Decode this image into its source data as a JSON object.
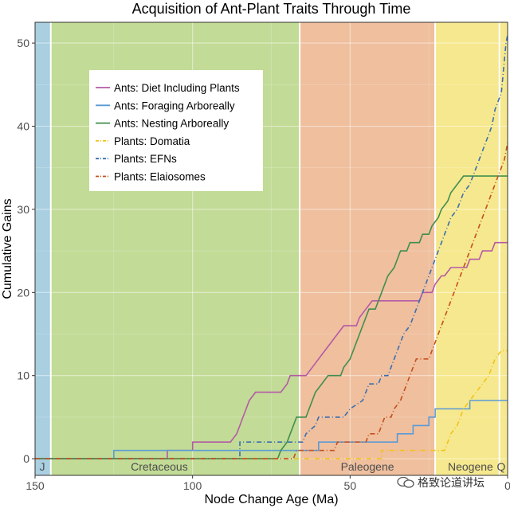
{
  "chart_data": {
    "type": "line",
    "title": "Acquisition of Ant-Plant Traits Through Time",
    "xlabel": "Node Change Age (Ma)",
    "ylabel": "Cumulative Gains",
    "xlim": [
      150,
      0
    ],
    "ylim": [
      -2,
      52.5
    ],
    "x_ticks": [
      150,
      100,
      50,
      0
    ],
    "y_ticks": [
      0,
      10,
      20,
      30,
      40,
      50
    ],
    "grid": true,
    "legend_position": "top-left",
    "periods": [
      {
        "label": "J",
        "start": 150,
        "end": 145,
        "color": "#a9cfe0"
      },
      {
        "label": "Cretaceous",
        "start": 145,
        "end": 66,
        "color": "#c2db96"
      },
      {
        "label": "Paleogene",
        "start": 66,
        "end": 23,
        "color": "#efbf9e"
      },
      {
        "label": "Neogene",
        "start": 23,
        "end": 2.6,
        "color": "#f6e88e"
      },
      {
        "label": "Q",
        "start": 2.6,
        "end": 0,
        "color": "#f6e88e"
      }
    ],
    "series": [
      {
        "name": "Ants: Diet Including Plants",
        "color": "#b45aa6",
        "dash": "solid",
        "points": [
          [
            150,
            0
          ],
          [
            108,
            0
          ],
          [
            108,
            1
          ],
          [
            100,
            1
          ],
          [
            100,
            2
          ],
          [
            88,
            2
          ],
          [
            86,
            3
          ],
          [
            85,
            4
          ],
          [
            84,
            5
          ],
          [
            83,
            6
          ],
          [
            82,
            7
          ],
          [
            80,
            8
          ],
          [
            72,
            8
          ],
          [
            70,
            9
          ],
          [
            69,
            10
          ],
          [
            64,
            10
          ],
          [
            62,
            11
          ],
          [
            60,
            12
          ],
          [
            58,
            13
          ],
          [
            56,
            14
          ],
          [
            54,
            15
          ],
          [
            52,
            16
          ],
          [
            48,
            16
          ],
          [
            47,
            17
          ],
          [
            45,
            18
          ],
          [
            43,
            19
          ],
          [
            28,
            19
          ],
          [
            27,
            20
          ],
          [
            24,
            20
          ],
          [
            23,
            21
          ],
          [
            21,
            22
          ],
          [
            20,
            22
          ],
          [
            18,
            23
          ],
          [
            13,
            23
          ],
          [
            12,
            24
          ],
          [
            9,
            24
          ],
          [
            8,
            25
          ],
          [
            5,
            25
          ],
          [
            4,
            26
          ],
          [
            0,
            26
          ]
        ]
      },
      {
        "name": "Ants: Foraging Arboreally",
        "color": "#5b9bd5",
        "dash": "solid",
        "points": [
          [
            150,
            0
          ],
          [
            125,
            0
          ],
          [
            125,
            1
          ],
          [
            60,
            1
          ],
          [
            60,
            2
          ],
          [
            35,
            2
          ],
          [
            35,
            3
          ],
          [
            30,
            3
          ],
          [
            30,
            4
          ],
          [
            25,
            4
          ],
          [
            25,
            5
          ],
          [
            23,
            5
          ],
          [
            23,
            6
          ],
          [
            12,
            6
          ],
          [
            12,
            7
          ],
          [
            0,
            7
          ]
        ]
      },
      {
        "name": "Ants: Nesting Arboreally",
        "color": "#3f8f4f",
        "dash": "solid",
        "points": [
          [
            150,
            0
          ],
          [
            73,
            0
          ],
          [
            72,
            1
          ],
          [
            70,
            2
          ],
          [
            69,
            3
          ],
          [
            68,
            4
          ],
          [
            67,
            5
          ],
          [
            64,
            5
          ],
          [
            63,
            6
          ],
          [
            62,
            7
          ],
          [
            61,
            8
          ],
          [
            59,
            9
          ],
          [
            57,
            10
          ],
          [
            53,
            10
          ],
          [
            52,
            11
          ],
          [
            50,
            12
          ],
          [
            49,
            13
          ],
          [
            48,
            14
          ],
          [
            47,
            15
          ],
          [
            46,
            16
          ],
          [
            45,
            17
          ],
          [
            44,
            18
          ],
          [
            42,
            18
          ],
          [
            41,
            19
          ],
          [
            40,
            20
          ],
          [
            39,
            21
          ],
          [
            38,
            22
          ],
          [
            36,
            23
          ],
          [
            35,
            24
          ],
          [
            34,
            25
          ],
          [
            32,
            25
          ],
          [
            31,
            26
          ],
          [
            28,
            26
          ],
          [
            27,
            27
          ],
          [
            25,
            27
          ],
          [
            24,
            28
          ],
          [
            22,
            29
          ],
          [
            21,
            30
          ],
          [
            19,
            31
          ],
          [
            18,
            32
          ],
          [
            16,
            33
          ],
          [
            14,
            34
          ],
          [
            0,
            34
          ]
        ]
      },
      {
        "name": "Plants: Domatia",
        "color": "#f2c318",
        "dash": "6,3,1,3",
        "points": [
          [
            150,
            0
          ],
          [
            40,
            0
          ],
          [
            40,
            1
          ],
          [
            20,
            1
          ],
          [
            19,
            2
          ],
          [
            18,
            3
          ],
          [
            16,
            4
          ],
          [
            15,
            5
          ],
          [
            14,
            6
          ],
          [
            12,
            7
          ],
          [
            10,
            8
          ],
          [
            8,
            9
          ],
          [
            6,
            10
          ],
          [
            5,
            11
          ],
          [
            4,
            12
          ],
          [
            2,
            13
          ],
          [
            0,
            13
          ]
        ]
      },
      {
        "name": "Plants: EFNs",
        "color": "#3a6fb0",
        "dash": "6,3,1,3",
        "points": [
          [
            150,
            0
          ],
          [
            85,
            0
          ],
          [
            85,
            2
          ],
          [
            65,
            2
          ],
          [
            64,
            3
          ],
          [
            61,
            4
          ],
          [
            60,
            5
          ],
          [
            52,
            5
          ],
          [
            50,
            6
          ],
          [
            46,
            7
          ],
          [
            45,
            8
          ],
          [
            44,
            9
          ],
          [
            41,
            9
          ],
          [
            40,
            10
          ],
          [
            38,
            10
          ],
          [
            37,
            11
          ],
          [
            36,
            12
          ],
          [
            35,
            13
          ],
          [
            34,
            14
          ],
          [
            33,
            15
          ],
          [
            31,
            16
          ],
          [
            30,
            17
          ],
          [
            29,
            18
          ],
          [
            28,
            19
          ],
          [
            27,
            20
          ],
          [
            26,
            21
          ],
          [
            25,
            22
          ],
          [
            24,
            23
          ],
          [
            23,
            24
          ],
          [
            22,
            25
          ],
          [
            21,
            26
          ],
          [
            20,
            27
          ],
          [
            19,
            28
          ],
          [
            18,
            29
          ],
          [
            16,
            30
          ],
          [
            15,
            31
          ],
          [
            14,
            32
          ],
          [
            12,
            33
          ],
          [
            11,
            34
          ],
          [
            10,
            35
          ],
          [
            9,
            36
          ],
          [
            8,
            37
          ],
          [
            7,
            38
          ],
          [
            6,
            39
          ],
          [
            5,
            40
          ],
          [
            4,
            42
          ],
          [
            3,
            43
          ],
          [
            2,
            44
          ],
          [
            1.5,
            46
          ],
          [
            1,
            48
          ],
          [
            0.5,
            50
          ],
          [
            0,
            51
          ]
        ]
      },
      {
        "name": "Plants: Elaiosomes",
        "color": "#c5501b",
        "dash": "6,3,1,3",
        "points": [
          [
            150,
            0
          ],
          [
            68,
            0
          ],
          [
            67,
            1
          ],
          [
            55,
            1
          ],
          [
            54,
            2
          ],
          [
            45,
            2
          ],
          [
            44,
            3
          ],
          [
            41,
            3
          ],
          [
            40,
            4
          ],
          [
            39,
            5
          ],
          [
            37,
            5
          ],
          [
            36,
            6
          ],
          [
            34,
            7
          ],
          [
            33,
            8
          ],
          [
            32,
            9
          ],
          [
            31,
            10
          ],
          [
            30,
            11
          ],
          [
            29,
            12
          ],
          [
            25,
            12
          ],
          [
            24,
            13
          ],
          [
            23,
            14
          ],
          [
            22,
            15
          ],
          [
            21,
            16
          ],
          [
            20,
            17
          ],
          [
            19,
            18
          ],
          [
            18,
            19
          ],
          [
            17,
            20
          ],
          [
            16,
            21
          ],
          [
            15,
            22
          ],
          [
            14,
            23
          ],
          [
            13,
            24
          ],
          [
            12,
            25
          ],
          [
            11,
            26
          ],
          [
            10,
            27
          ],
          [
            9,
            28
          ],
          [
            8,
            29
          ],
          [
            7,
            30
          ],
          [
            6,
            31
          ],
          [
            5,
            32
          ],
          [
            4,
            33
          ],
          [
            3,
            34
          ],
          [
            2,
            35
          ],
          [
            1,
            36
          ],
          [
            0.5,
            37
          ],
          [
            0,
            38
          ]
        ]
      }
    ]
  },
  "watermark": {
    "text": "格致论道讲坛",
    "icon": "wechat-icon"
  }
}
